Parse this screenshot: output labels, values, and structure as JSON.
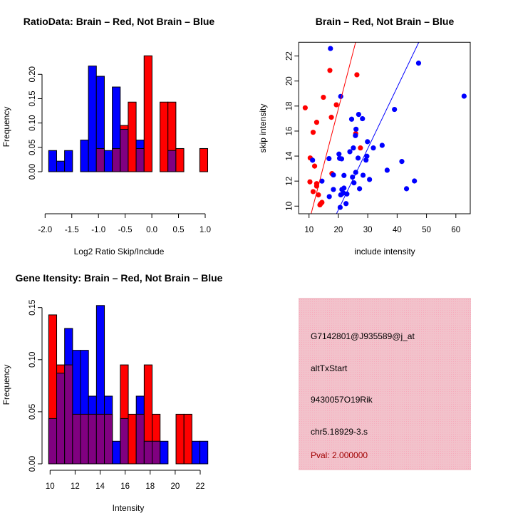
{
  "colors": {
    "red": "#ff0000",
    "blue": "#0000ff",
    "overlap": "#800080",
    "panel": "#f2c2cb",
    "pval": "#a00000"
  },
  "chart_data": [
    {
      "id": "ratio",
      "type": "bar",
      "title": "RatioData: Brain – Red, Not Brain – Blue",
      "xlabel": "Log2 Ratio Skip/Include",
      "ylabel": "Frequency",
      "xlim": [
        -2.0,
        1.0
      ],
      "ylim": [
        0,
        0.24
      ],
      "xticks": [
        "-2.0",
        "-1.5",
        "-1.0",
        "-0.5",
        "0.0",
        "0.5",
        "1.0"
      ],
      "xtick_values": [
        -2.0,
        -1.5,
        -1.0,
        -0.5,
        0.0,
        0.5,
        1.0
      ],
      "yticks": [
        "0.00",
        "0.05",
        "0.10",
        "0.15",
        "0.20"
      ],
      "ytick_values": [
        0,
        0.05,
        0.1,
        0.15,
        0.2
      ],
      "bin_start": -1.933,
      "bin_width": 0.149,
      "series": [
        {
          "name": "Not Brain",
          "color": "blue",
          "values": [
            0.0435,
            0.0217,
            0.0435,
            0,
            0.065,
            0.217,
            0.196,
            0.0435,
            0.174,
            0.087,
            0,
            0.065,
            0,
            0,
            0,
            0.0435,
            0,
            0,
            0,
            0
          ]
        },
        {
          "name": "Brain",
          "color": "red",
          "values": [
            0,
            0,
            0,
            0,
            0,
            0,
            0.0476,
            0,
            0.0476,
            0.095,
            0.143,
            0.0476,
            0.238,
            0,
            0.143,
            0.143,
            0.0476,
            0,
            0,
            0.0476
          ]
        }
      ]
    },
    {
      "id": "scatter",
      "type": "scatter",
      "title": "Brain – Red, Not Brain – Blue",
      "xlabel": "include intensity",
      "ylabel": "skip intensity",
      "xlim": [
        6.5,
        64.9
      ],
      "ylim": [
        9.39,
        23.1
      ],
      "xticks": [
        "10",
        "20",
        "30",
        "40",
        "50",
        "60"
      ],
      "xtick_values": [
        10,
        20,
        30,
        40,
        50,
        60
      ],
      "yticks": [
        "10",
        "12",
        "14",
        "16",
        "18",
        "20",
        "22"
      ],
      "ytick_values": [
        10,
        12,
        14,
        16,
        18,
        20,
        22
      ],
      "series": [
        {
          "name": "Brain",
          "color": "red",
          "line": {
            "slope": 0.905,
            "intercept": -0.31
          },
          "points": [
            [
              8.7,
              17.86
            ],
            [
              17.1,
              20.85
            ],
            [
              26.3,
              20.5
            ],
            [
              14.9,
              18.7
            ],
            [
              19.3,
              18.1
            ],
            [
              17.6,
              17.1
            ],
            [
              12.6,
              16.7
            ],
            [
              11.4,
              15.9
            ],
            [
              25.9,
              15.8
            ],
            [
              27.5,
              14.65
            ],
            [
              10.4,
              13.85
            ],
            [
              11.9,
              13.2
            ],
            [
              17.8,
              12.6
            ],
            [
              10.3,
              11.94
            ],
            [
              12.6,
              11.8
            ],
            [
              12.6,
              11.6
            ],
            [
              11.4,
              11.16
            ],
            [
              13.2,
              10.9
            ],
            [
              14.4,
              10.3
            ],
            [
              14.0,
              10.2
            ],
            [
              13.7,
              10.1
            ]
          ]
        },
        {
          "name": "Not Brain",
          "color": "blue",
          "line": {
            "slope": 0.489,
            "intercept": -0.07
          },
          "points": [
            [
              17.3,
              22.6
            ],
            [
              20.8,
              18.77
            ],
            [
              26.9,
              17.33
            ],
            [
              28.2,
              16.99
            ],
            [
              24.5,
              16.95
            ],
            [
              26.0,
              16.15
            ],
            [
              25.8,
              15.64
            ],
            [
              29.9,
              15.15
            ],
            [
              34.9,
              14.86
            ],
            [
              31.9,
              14.65
            ],
            [
              25.1,
              14.65
            ],
            [
              23.9,
              14.35
            ],
            [
              20.2,
              14.16
            ],
            [
              29.7,
              13.99
            ],
            [
              26.7,
              13.84
            ],
            [
              20.4,
              13.82
            ],
            [
              21.1,
              13.78
            ],
            [
              16.8,
              13.8
            ],
            [
              11.2,
              13.67
            ],
            [
              29.4,
              13.68
            ],
            [
              36.6,
              12.87
            ],
            [
              25.9,
              12.7
            ],
            [
              18.3,
              12.49
            ],
            [
              21.9,
              12.45
            ],
            [
              28.4,
              12.47
            ],
            [
              24.8,
              12.32
            ],
            [
              30.6,
              12.13
            ],
            [
              14.4,
              12.0
            ],
            [
              25.3,
              11.86
            ],
            [
              18.3,
              11.33
            ],
            [
              27.2,
              11.39
            ],
            [
              21.2,
              11.33
            ],
            [
              21.9,
              11.44
            ],
            [
              16.9,
              10.76
            ],
            [
              20.8,
              10.9
            ],
            [
              22.9,
              10.97
            ],
            [
              21.7,
              11.04
            ],
            [
              22.6,
              10.2
            ],
            [
              20.6,
              9.9
            ],
            [
              47.3,
              21.43
            ],
            [
              62.8,
              18.79
            ],
            [
              39.1,
              17.73
            ],
            [
              41.6,
              13.57
            ],
            [
              45.9,
              12.01
            ],
            [
              43.2,
              11.39
            ]
          ]
        }
      ]
    },
    {
      "id": "intensity",
      "type": "bar",
      "title": "Gene Itensity: Brain – Red, Not Brain – Blue",
      "xlabel": "Intensity",
      "ylabel": "Frequency",
      "xlim": [
        10,
        22
      ],
      "ylim": [
        0,
        0.15
      ],
      "xticks": [
        "10",
        "12",
        "14",
        "16",
        "18",
        "20",
        "22"
      ],
      "xtick_values": [
        10,
        12,
        14,
        16,
        18,
        20,
        22
      ],
      "yticks": [
        "0.00",
        "0.05",
        "0.10",
        "0.15"
      ],
      "ytick_values": [
        0,
        0.05,
        0.1,
        0.15
      ],
      "bin_start": 9.89,
      "bin_width": 0.636,
      "series": [
        {
          "name": "Not Brain",
          "color": "blue",
          "values": [
            0.0435,
            0.087,
            0.13,
            0.109,
            0.109,
            0.065,
            0.152,
            0.065,
            0.0217,
            0.0435,
            0,
            0.065,
            0.0217,
            0.0217,
            0.0217,
            0,
            0,
            0,
            0.0217,
            0.0217
          ]
        },
        {
          "name": "Brain",
          "color": "red",
          "values": [
            0.143,
            0.095,
            0.095,
            0.0476,
            0.0476,
            0.0476,
            0.0476,
            0.0476,
            0,
            0.095,
            0.0476,
            0.0476,
            0.095,
            0.0476,
            0,
            0,
            0.0476,
            0.0476,
            0,
            0
          ]
        }
      ]
    }
  ],
  "info_panel": {
    "probe_id": "G7142801@J935589@j_at",
    "event_type": "altTxStart",
    "gene": "9430057O19Rik",
    "location": "chr5.18929-3.s",
    "pval": "Pval: 2.000000"
  }
}
